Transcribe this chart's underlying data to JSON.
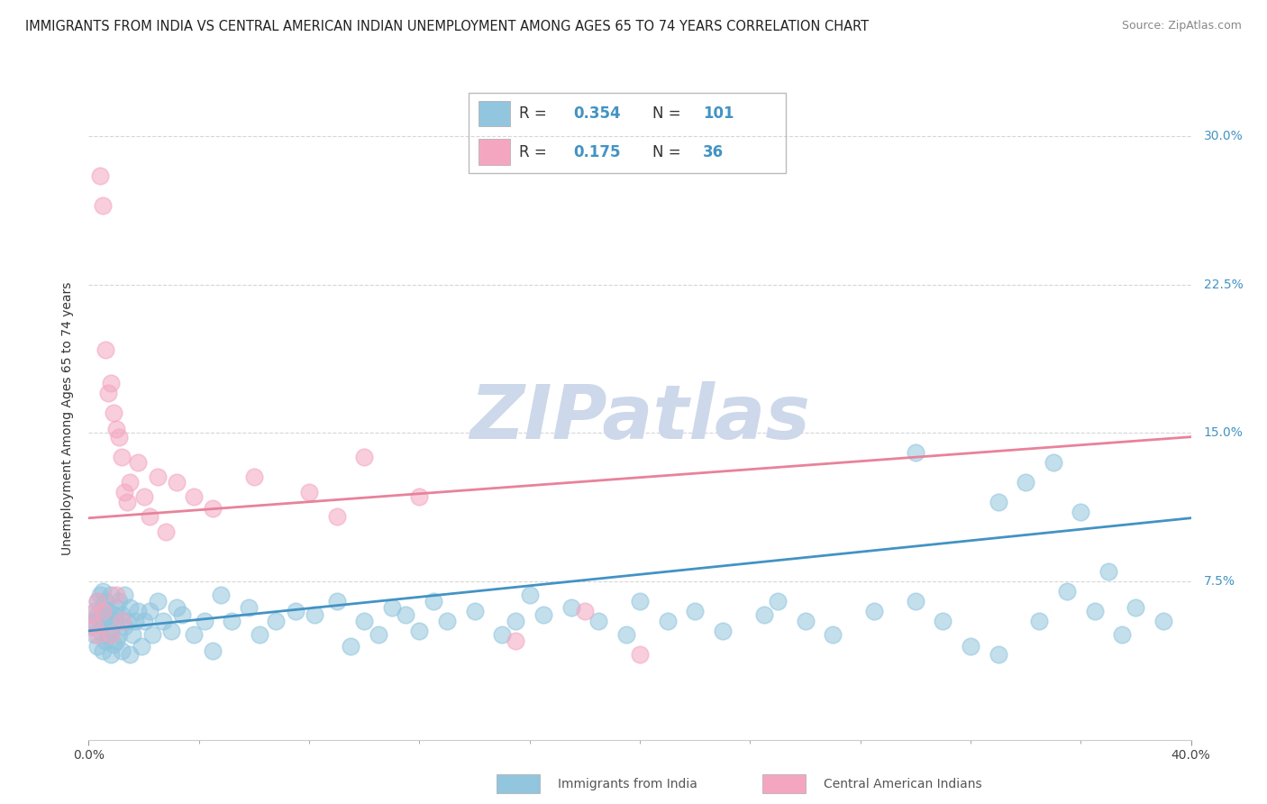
{
  "title": "IMMIGRANTS FROM INDIA VS CENTRAL AMERICAN INDIAN UNEMPLOYMENT AMONG AGES 65 TO 74 YEARS CORRELATION CHART",
  "source": "Source: ZipAtlas.com",
  "ylabel": "Unemployment Among Ages 65 to 74 years",
  "ytick_labels": [
    "7.5%",
    "15.0%",
    "22.5%",
    "30.0%"
  ],
  "ytick_values": [
    0.075,
    0.15,
    0.225,
    0.3
  ],
  "xlim": [
    0.0,
    0.4
  ],
  "ylim": [
    -0.005,
    0.32
  ],
  "watermark_text": "ZIPatlas",
  "legend_R1": "0.354",
  "legend_N1": "101",
  "legend_R2": "0.175",
  "legend_N2": "36",
  "series1_label": "Immigrants from India",
  "series2_label": "Central American Indians",
  "blue_color": "#92c5de",
  "pink_color": "#f4a6c0",
  "blue_edge_color": "#5b9abf",
  "pink_edge_color": "#e07090",
  "blue_line_color": "#4393c3",
  "pink_line_color": "#e8829a",
  "blue_line_x0": 0.0,
  "blue_line_y0": 0.05,
  "blue_line_x1": 0.4,
  "blue_line_y1": 0.107,
  "pink_line_x0": 0.0,
  "pink_line_y0": 0.107,
  "pink_line_x1": 0.4,
  "pink_line_y1": 0.148,
  "grid_color": "#cccccc",
  "watermark_color": "#cdd8ea",
  "background_color": "#ffffff",
  "title_fontsize": 10.5,
  "source_fontsize": 9,
  "ylabel_fontsize": 10,
  "tick_fontsize": 10,
  "legend_fontsize": 12,
  "watermark_fontsize": 60,
  "scatter_size": 180,
  "scatter_alpha": 0.55,
  "blue_x": [
    0.001,
    0.002,
    0.002,
    0.002,
    0.003,
    0.003,
    0.003,
    0.004,
    0.004,
    0.004,
    0.005,
    0.005,
    0.005,
    0.005,
    0.006,
    0.006,
    0.006,
    0.007,
    0.007,
    0.007,
    0.008,
    0.008,
    0.008,
    0.009,
    0.009,
    0.01,
    0.01,
    0.01,
    0.011,
    0.011,
    0.012,
    0.012,
    0.013,
    0.013,
    0.014,
    0.015,
    0.015,
    0.016,
    0.017,
    0.018,
    0.019,
    0.02,
    0.022,
    0.023,
    0.025,
    0.027,
    0.03,
    0.032,
    0.034,
    0.038,
    0.042,
    0.045,
    0.048,
    0.052,
    0.058,
    0.062,
    0.068,
    0.075,
    0.082,
    0.09,
    0.095,
    0.1,
    0.105,
    0.11,
    0.115,
    0.12,
    0.125,
    0.13,
    0.14,
    0.15,
    0.155,
    0.16,
    0.165,
    0.175,
    0.185,
    0.195,
    0.2,
    0.21,
    0.22,
    0.23,
    0.245,
    0.25,
    0.26,
    0.27,
    0.285,
    0.3,
    0.31,
    0.32,
    0.33,
    0.345,
    0.355,
    0.365,
    0.375,
    0.3,
    0.33,
    0.34,
    0.35,
    0.36,
    0.37,
    0.38,
    0.39
  ],
  "blue_y": [
    0.052,
    0.048,
    0.055,
    0.06,
    0.042,
    0.058,
    0.065,
    0.05,
    0.068,
    0.055,
    0.04,
    0.055,
    0.062,
    0.07,
    0.045,
    0.058,
    0.065,
    0.048,
    0.055,
    0.06,
    0.038,
    0.05,
    0.068,
    0.043,
    0.058,
    0.045,
    0.055,
    0.062,
    0.048,
    0.065,
    0.04,
    0.058,
    0.052,
    0.068,
    0.055,
    0.038,
    0.062,
    0.048,
    0.055,
    0.06,
    0.042,
    0.055,
    0.06,
    0.048,
    0.065,
    0.055,
    0.05,
    0.062,
    0.058,
    0.048,
    0.055,
    0.04,
    0.068,
    0.055,
    0.062,
    0.048,
    0.055,
    0.06,
    0.058,
    0.065,
    0.042,
    0.055,
    0.048,
    0.062,
    0.058,
    0.05,
    0.065,
    0.055,
    0.06,
    0.048,
    0.055,
    0.068,
    0.058,
    0.062,
    0.055,
    0.048,
    0.065,
    0.055,
    0.06,
    0.05,
    0.058,
    0.065,
    0.055,
    0.048,
    0.06,
    0.065,
    0.055,
    0.042,
    0.038,
    0.055,
    0.07,
    0.06,
    0.048,
    0.14,
    0.115,
    0.125,
    0.135,
    0.11,
    0.08,
    0.062,
    0.055
  ],
  "pink_x": [
    0.001,
    0.002,
    0.003,
    0.003,
    0.004,
    0.005,
    0.005,
    0.006,
    0.007,
    0.008,
    0.008,
    0.009,
    0.01,
    0.01,
    0.011,
    0.012,
    0.012,
    0.013,
    0.014,
    0.015,
    0.018,
    0.02,
    0.022,
    0.025,
    0.028,
    0.032,
    0.038,
    0.045,
    0.06,
    0.08,
    0.09,
    0.1,
    0.12,
    0.155,
    0.18,
    0.2
  ],
  "pink_y": [
    0.058,
    0.052,
    0.048,
    0.065,
    0.28,
    0.265,
    0.06,
    0.192,
    0.17,
    0.048,
    0.175,
    0.16,
    0.152,
    0.068,
    0.148,
    0.055,
    0.138,
    0.12,
    0.115,
    0.125,
    0.135,
    0.118,
    0.108,
    0.128,
    0.1,
    0.125,
    0.118,
    0.112,
    0.128,
    0.12,
    0.108,
    0.138,
    0.118,
    0.045,
    0.06,
    0.038
  ]
}
